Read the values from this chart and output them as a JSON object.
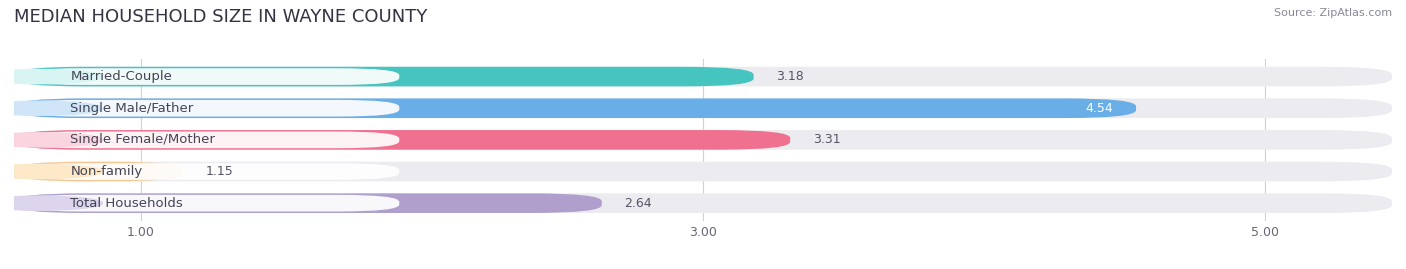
{
  "title": "MEDIAN HOUSEHOLD SIZE IN WAYNE COUNTY",
  "source": "Source: ZipAtlas.com",
  "categories": [
    "Married-Couple",
    "Single Male/Father",
    "Single Female/Mother",
    "Non-family",
    "Total Households"
  ],
  "values": [
    3.18,
    4.54,
    3.31,
    1.15,
    2.64
  ],
  "bar_colors": [
    "#45C4C0",
    "#6AAEE8",
    "#F07090",
    "#F5C896",
    "#B09FCC"
  ],
  "label_pill_colors": [
    "#D8F4F3",
    "#D0E6F8",
    "#FAD5E0",
    "#FDE8C8",
    "#DDD5EE"
  ],
  "xlim_min": 0.55,
  "xlim_max": 5.45,
  "xticks": [
    1.0,
    3.0,
    5.0
  ],
  "xtick_labels": [
    "1.00",
    "3.00",
    "5.00"
  ],
  "value_inside": [
    false,
    true,
    false,
    false,
    false
  ],
  "background_color": "#ffffff",
  "bar_bg_color": "#ebebf0",
  "grid_color": "#d0d0d8",
  "bar_height": 0.62,
  "title_fontsize": 13,
  "label_fontsize": 9.5,
  "value_fontsize": 9
}
